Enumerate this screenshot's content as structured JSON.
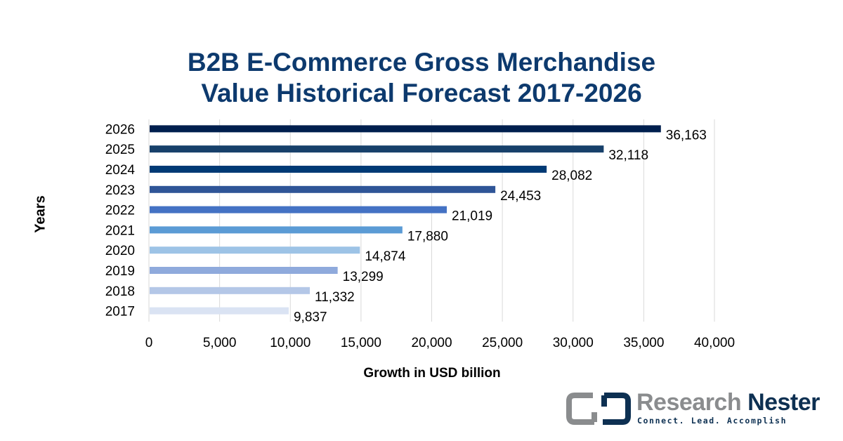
{
  "chart_data": {
    "type": "bar",
    "orientation": "horizontal",
    "title_lines": [
      "B2B E-Commerce Gross Merchandise",
      "Value Historical Forecast 2017-2026"
    ],
    "title": "B2B E-Commerce Gross Merchandise Value Historical Forecast 2017-2026",
    "xlabel": "Growth in USD billion",
    "ylabel": "Years",
    "categories": [
      "2026",
      "2025",
      "2024",
      "2023",
      "2022",
      "2021",
      "2020",
      "2019",
      "2018",
      "2017"
    ],
    "values": [
      36163,
      32118,
      28082,
      24453,
      21019,
      17880,
      14874,
      13299,
      11332,
      9837
    ],
    "data_labels": [
      "36,163",
      "32,118",
      "28,082",
      "24,453",
      "21,019",
      "17,880",
      "14,874",
      "13,299",
      "11,332",
      "9,837"
    ],
    "bar_colors": [
      "#001f4e",
      "#17406a",
      "#003a75",
      "#2f5597",
      "#4472c4",
      "#5b9bd5",
      "#9dc3e6",
      "#8faadc",
      "#b4c7e7",
      "#dae3f3"
    ],
    "xlim": [
      0,
      40000
    ],
    "xticks": [
      0,
      5000,
      10000,
      15000,
      20000,
      25000,
      30000,
      35000,
      40000
    ],
    "xtick_labels": [
      "0",
      "5,000",
      "10,000",
      "15,000",
      "20,000",
      "25,000",
      "30,000",
      "35,000",
      "40,000"
    ],
    "grid": true,
    "legend": "none"
  },
  "branding": {
    "name_part1": "Research",
    "name_part2": "Nester",
    "tagline": "Connect. Lead. Accomplish",
    "gray": "#8a8c8e",
    "navy": "#0d3052"
  }
}
